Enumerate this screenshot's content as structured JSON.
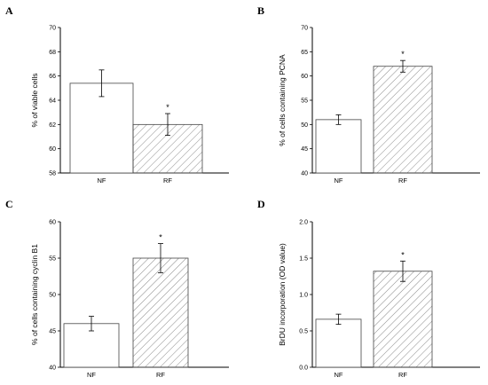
{
  "colors": {
    "axis": "#000000",
    "bar_outline": "#444444",
    "hatch": "#8c8c8c",
    "background": "#ffffff"
  },
  "chart_data": [
    {
      "panel": "A",
      "type": "bar",
      "categories": [
        "NF",
        "RF"
      ],
      "values": [
        65.4,
        62.0
      ],
      "errors": [
        1.1,
        0.9
      ],
      "significance": [
        "",
        "*"
      ],
      "ylabel": "% of viable cells",
      "ylim": [
        58,
        70
      ],
      "yticks": [
        "58",
        "60",
        "62",
        "64",
        "66",
        "68",
        "70"
      ],
      "fills": [
        "plain",
        "hatched"
      ],
      "grid": false
    },
    {
      "panel": "B",
      "type": "bar",
      "categories": [
        "NF",
        "RF"
      ],
      "values": [
        51.0,
        62.0
      ],
      "errors": [
        1.0,
        1.2
      ],
      "significance": [
        "",
        "*"
      ],
      "ylabel": "% of cells containing PCNA",
      "ylim": [
        40,
        70
      ],
      "yticks": [
        "40",
        "45",
        "50",
        "55",
        "60",
        "65",
        "70"
      ],
      "fills": [
        "plain",
        "hatched"
      ],
      "grid": false
    },
    {
      "panel": "C",
      "type": "bar",
      "categories": [
        "NF",
        "RF"
      ],
      "values": [
        46.0,
        55.0
      ],
      "errors": [
        1.0,
        2.0
      ],
      "significance": [
        "",
        "*"
      ],
      "ylabel": "% of cells containing cyclin B1",
      "ylim": [
        40,
        60
      ],
      "yticks": [
        "40",
        "45",
        "50",
        "55",
        "60"
      ],
      "fills": [
        "plain",
        "hatched"
      ],
      "grid": false
    },
    {
      "panel": "D",
      "type": "bar",
      "categories": [
        "NF",
        "RF"
      ],
      "values": [
        0.66,
        1.32
      ],
      "errors": [
        0.07,
        0.14
      ],
      "significance": [
        "",
        "*"
      ],
      "ylabel": "BrDU incorporation (OD value)",
      "ylim": [
        0,
        2
      ],
      "yticks": [
        "0.0",
        "0.5",
        "1.0",
        "1.5",
        "2.0"
      ],
      "fills": [
        "plain",
        "hatched"
      ],
      "grid": false
    }
  ]
}
